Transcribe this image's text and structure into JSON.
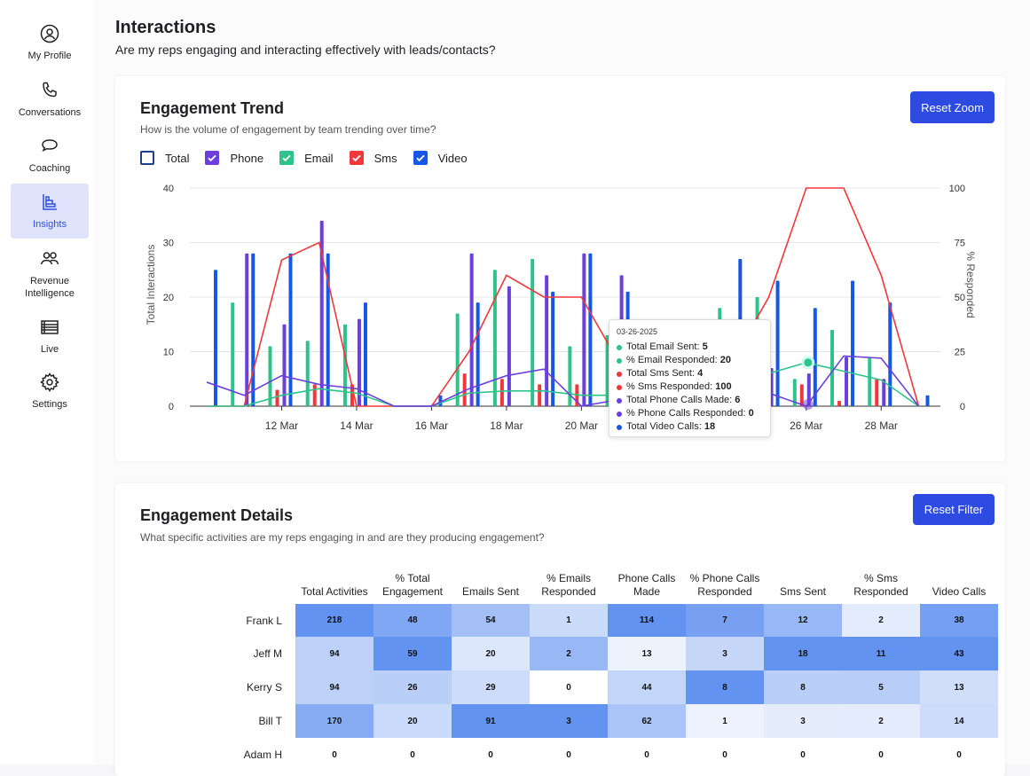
{
  "sidebar": {
    "items": [
      {
        "label": "My Profile",
        "icon": "user-circle-icon"
      },
      {
        "label": "Conversations",
        "icon": "phone-icon"
      },
      {
        "label": "Coaching",
        "icon": "chat-bubbles-icon"
      },
      {
        "label": "Insights",
        "icon": "bar-chart-icon",
        "active": true
      },
      {
        "label": "Revenue Intelligence",
        "icon": "people-icon"
      },
      {
        "label": "Live",
        "icon": "list-icon"
      },
      {
        "label": "Settings",
        "icon": "gear-icon"
      }
    ]
  },
  "page": {
    "title": "Interactions",
    "subtitle": "Are my reps engaging and interacting effectively with leads/contacts?"
  },
  "trend": {
    "title": "Engagement Trend",
    "subtitle": "How is the volume of engagement by team trending over time?",
    "reset_label": "Reset Zoom",
    "legend": [
      {
        "label": "Total",
        "checked": false,
        "color": "#1c3f8f"
      },
      {
        "label": "Phone",
        "checked": true,
        "color": "#6c3fdc"
      },
      {
        "label": "Email",
        "checked": true,
        "color": "#2ec38b"
      },
      {
        "label": "Sms",
        "checked": true,
        "color": "#f0383c"
      },
      {
        "label": "Video",
        "checked": true,
        "color": "#1657e6"
      }
    ]
  },
  "chart_data": {
    "type": "bar",
    "title": "Engagement Trend",
    "ylabel": "Total Interactions",
    "y2label": "% Responded",
    "ylim": [
      0,
      40
    ],
    "y2lim": [
      0,
      100
    ],
    "yticks": [
      0,
      10,
      20,
      30,
      40
    ],
    "y2ticks": [
      0,
      25,
      50,
      75,
      100
    ],
    "x_tick_labels": [
      "12 Mar",
      "14 Mar",
      "16 Mar",
      "18 Mar",
      "20 Mar",
      "22 Mar",
      "24 Mar",
      "26 Mar",
      "28 Mar"
    ],
    "x_tick_days": [
      12,
      14,
      16,
      18,
      20,
      22,
      24,
      26,
      28
    ],
    "days": [
      10,
      11,
      12,
      13,
      14,
      15,
      16,
      17,
      18,
      19,
      20,
      21,
      22,
      23,
      24,
      25,
      26,
      27,
      28,
      29
    ],
    "series": [
      {
        "name": "Email",
        "color": "#2ec38b",
        "values": [
          0,
          19,
          11,
          12,
          15,
          0,
          0,
          17,
          25,
          27,
          11,
          13,
          0,
          0,
          18,
          20,
          5,
          14,
          9,
          0
        ]
      },
      {
        "name": "Sms",
        "color": "#f0383c",
        "values": [
          0,
          0,
          3,
          4,
          4,
          0,
          0,
          6,
          5,
          4,
          4,
          4,
          0,
          0,
          2,
          3,
          4,
          1,
          5,
          0
        ]
      },
      {
        "name": "Phone",
        "color": "#6c3fdc",
        "values": [
          0,
          28,
          15,
          34,
          16,
          0,
          0,
          28,
          22,
          24,
          28,
          24,
          0,
          0,
          8,
          7,
          6,
          9,
          5,
          0
        ]
      },
      {
        "name": "Video",
        "color": "#1657e6",
        "values": [
          25,
          28,
          28,
          28,
          19,
          0,
          2,
          19,
          0,
          21,
          28,
          21,
          0,
          0,
          27,
          23,
          18,
          23,
          19,
          2
        ]
      }
    ],
    "pct_series": [
      {
        "name": "% Sms Responded",
        "color": "#f0383c",
        "values": [
          0,
          0,
          67,
          75,
          0,
          0,
          0,
          25,
          60,
          50,
          50,
          20,
          0,
          0,
          20,
          50,
          100,
          100,
          60,
          0
        ]
      },
      {
        "name": "% Email Responded",
        "color": "#2ec38b",
        "values": [
          0,
          0,
          5,
          8,
          6,
          0,
          0,
          6,
          7,
          7,
          5,
          5,
          0,
          0,
          10,
          15,
          20,
          16,
          12,
          0
        ]
      },
      {
        "name": "% Phone Calls Responded",
        "color": "#6c3fdc",
        "values": [
          11,
          5,
          14,
          10,
          8,
          0,
          0,
          8,
          14,
          17,
          0,
          3,
          0,
          0,
          4,
          6,
          0,
          23,
          22,
          0
        ]
      }
    ]
  },
  "tooltip": {
    "date": "03-26-2025",
    "rows": [
      {
        "label": "Total Email Sent:",
        "value": "5",
        "color": "#2ec38b"
      },
      {
        "label": "% Email Responded:",
        "value": "20",
        "color": "#2ec38b"
      },
      {
        "label": "Total Sms Sent:",
        "value": "4",
        "color": "#f0383c"
      },
      {
        "label": "% Sms Responded:",
        "value": "100",
        "color": "#f0383c"
      },
      {
        "label": "Total Phone Calls Made:",
        "value": "6",
        "color": "#6c3fdc"
      },
      {
        "label": "% Phone Calls Responded:",
        "value": "0",
        "color": "#6c3fdc"
      },
      {
        "label": "Total Video Calls:",
        "value": "18",
        "color": "#1657e6"
      }
    ]
  },
  "details": {
    "title": "Engagement Details",
    "subtitle": "What specific activities are my reps engaging in and are they producing engagement?",
    "reset_label": "Reset Filter",
    "columns": [
      "Total Activities",
      "% Total Engagement",
      "Emails Sent",
      "% Emails Responded",
      "Phone Calls Made",
      "% Phone Calls Responded",
      "Sms Sent",
      "% Sms Responded",
      "Video Calls"
    ],
    "rows": [
      {
        "name": "Frank L",
        "values": [
          "218",
          "48",
          "54",
          "1",
          "114",
          "7",
          "12",
          "2",
          "38"
        ]
      },
      {
        "name": "Jeff M",
        "values": [
          "94",
          "59",
          "20",
          "2",
          "13",
          "3",
          "18",
          "11",
          "43"
        ]
      },
      {
        "name": "Kerry S",
        "values": [
          "94",
          "26",
          "29",
          "0",
          "44",
          "8",
          "8",
          "5",
          "13"
        ]
      },
      {
        "name": "Bill T",
        "values": [
          "170",
          "20",
          "91",
          "3",
          "62",
          "1",
          "3",
          "2",
          "14"
        ]
      },
      {
        "name": "Adam H",
        "values": [
          "0",
          "0",
          "0",
          "0",
          "0",
          "0",
          "0",
          "0",
          "0"
        ]
      }
    ]
  }
}
